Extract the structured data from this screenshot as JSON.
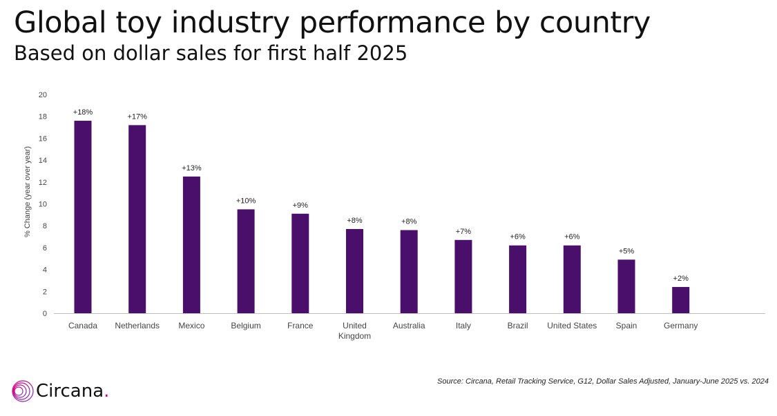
{
  "title": "Global toy industry performance by country",
  "subtitle": "Based on dollar sales for first half 2025",
  "source": "Source: Circana, Retail Tracking Service, G12, Dollar Sales Adjusted, January-June 2025 vs. 2024",
  "logo": {
    "text": "Circana",
    "dot": ".",
    "icon": "circana-logo-icon"
  },
  "colors": {
    "bar": "#4a0f6b",
    "axis": "#bfbfbf",
    "text": "#444444",
    "logo_dot": "#e2007a"
  },
  "chart_data": {
    "type": "bar",
    "ylabel": "% Change (year over year)",
    "xlabel": "",
    "ylim": [
      0,
      20
    ],
    "yticks": [
      0,
      2,
      4,
      6,
      8,
      10,
      12,
      14,
      16,
      18,
      20
    ],
    "grid": false,
    "categories": [
      [
        "Canada"
      ],
      [
        "Netherlands"
      ],
      [
        "Mexico"
      ],
      [
        "Belgium"
      ],
      [
        "France"
      ],
      [
        "United",
        "Kingdom"
      ],
      [
        "Australia"
      ],
      [
        "Italy"
      ],
      [
        "Brazil"
      ],
      [
        "United States"
      ],
      [
        "Spain"
      ],
      [
        "Germany"
      ]
    ],
    "values": [
      17.6,
      17.2,
      12.5,
      9.5,
      9.1,
      7.7,
      7.6,
      6.7,
      6.2,
      6.2,
      4.9,
      2.4
    ],
    "data_labels": [
      "+18%",
      "+17%",
      "+13%",
      "+10%",
      "+9%",
      "+8%",
      "+8%",
      "+7%",
      "+6%",
      "+6%",
      "+5%",
      "+2%"
    ]
  }
}
